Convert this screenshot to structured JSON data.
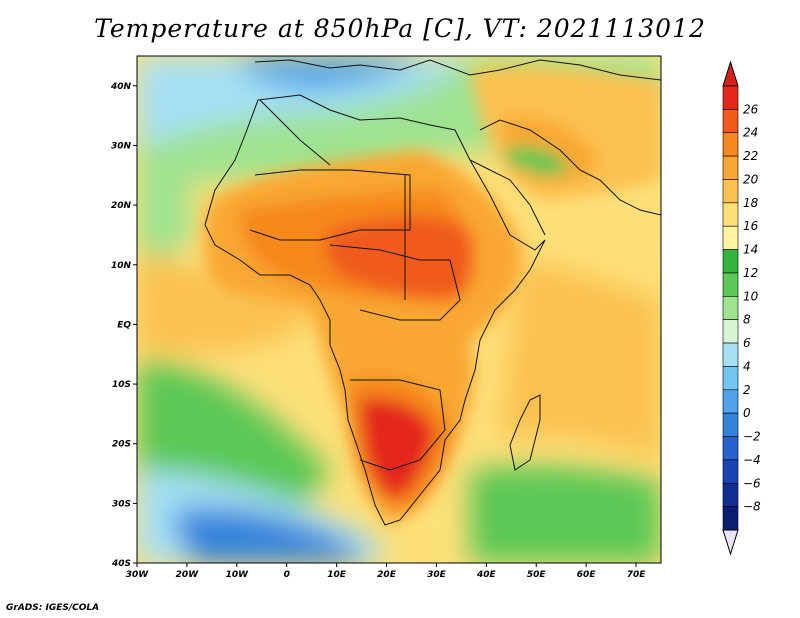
{
  "title": "Temperature at 850hPa [C], VT: 2021113012",
  "credit": "GrADS: IGES/COLA",
  "map": {
    "lon_range": [
      -30,
      75
    ],
    "lat_range": [
      -40,
      45
    ],
    "lon_ticks": [
      {
        "value": -30,
        "label": "30W"
      },
      {
        "value": -20,
        "label": "20W"
      },
      {
        "value": -10,
        "label": "10W"
      },
      {
        "value": 0,
        "label": "0"
      },
      {
        "value": 10,
        "label": "10E"
      },
      {
        "value": 20,
        "label": "20E"
      },
      {
        "value": 30,
        "label": "30E"
      },
      {
        "value": 40,
        "label": "40E"
      },
      {
        "value": 50,
        "label": "50E"
      },
      {
        "value": 60,
        "label": "60E"
      },
      {
        "value": 70,
        "label": "70E"
      }
    ],
    "lat_ticks": [
      {
        "value": 40,
        "label": "40N"
      },
      {
        "value": 30,
        "label": "30N"
      },
      {
        "value": 20,
        "label": "20N"
      },
      {
        "value": 10,
        "label": "10N"
      },
      {
        "value": 0,
        "label": "EQ"
      },
      {
        "value": -10,
        "label": "10S"
      },
      {
        "value": -20,
        "label": "20S"
      },
      {
        "value": -30,
        "label": "30S"
      },
      {
        "value": -40,
        "label": "40S"
      }
    ]
  },
  "colorbar": {
    "labels": [
      "26",
      "24",
      "22",
      "20",
      "18",
      "16",
      "14",
      "12",
      "10",
      "8",
      "6",
      "4",
      "2",
      "0",
      "−2",
      "−4",
      "−6",
      "−8"
    ],
    "colors_top_to_bottom": [
      "#e4261c",
      "#f05a1c",
      "#f6881e",
      "#f9a733",
      "#fbc150",
      "#fde07a",
      "#fdf4a4",
      "#33b43a",
      "#5cc855",
      "#9ee390",
      "#d7f5d3",
      "#a6e0f5",
      "#72c5ee",
      "#4ea3e9",
      "#3382dc",
      "#2661cd",
      "#1a43b5",
      "#132e93",
      "#0b1d6e"
    ],
    "top_arrow_color": "#d81f1a",
    "bottom_arrow_color": "#e6e6f8"
  }
}
